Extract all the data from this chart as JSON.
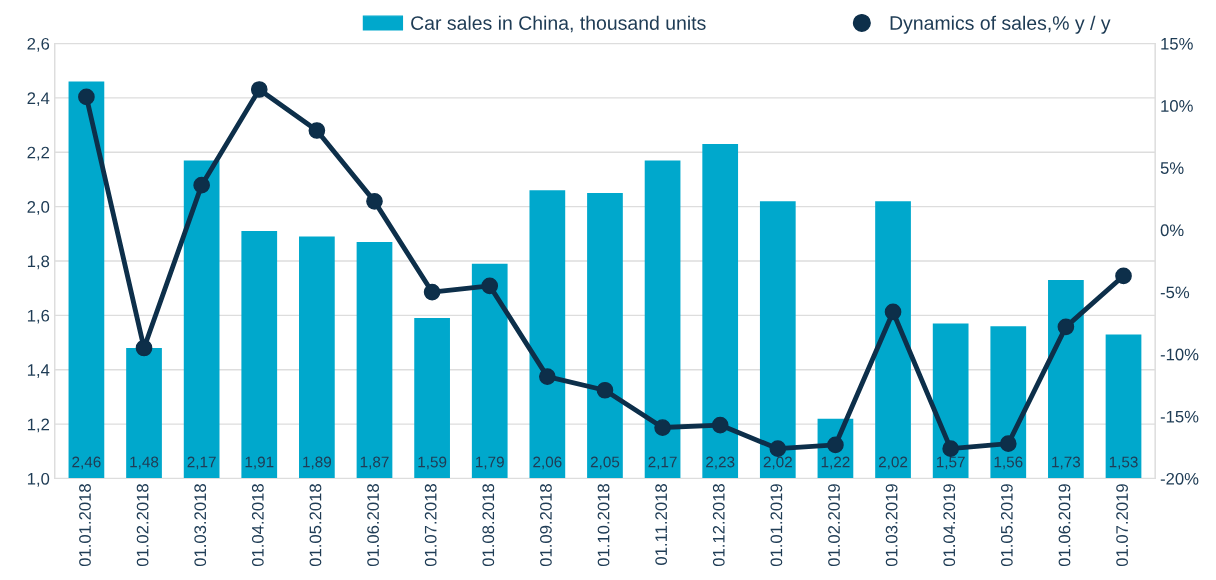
{
  "chart_data": {
    "type": "bar",
    "categories": [
      "01.01.2018",
      "01.02.2018",
      "01.03.2018",
      "01.04.2018",
      "01.05.2018",
      "01.06.2018",
      "01.07.2018",
      "01.08.2018",
      "01.09.2018",
      "01.10.2018",
      "01.11.2018",
      "01.12.2018",
      "01.01.2019",
      "01.02.2019",
      "01.03.2019",
      "01.04.2019",
      "01.05.2019",
      "01.06.2019",
      "01.07.2019"
    ],
    "series": [
      {
        "name": "Car sales in China, thousand units",
        "color": "#00a8cc",
        "values": [
          2.46,
          1.48,
          2.17,
          1.91,
          1.89,
          1.87,
          1.59,
          1.79,
          2.06,
          2.05,
          2.17,
          2.23,
          2.02,
          1.22,
          2.02,
          1.57,
          1.56,
          1.73,
          1.53
        ],
        "value_labels": [
          "2,46",
          "1,48",
          "2,17",
          "1,91",
          "1,89",
          "1,87",
          "1,59",
          "1,79",
          "2,06",
          "2,05",
          "2,17",
          "2,23",
          "2,02",
          "1,22",
          "2,02",
          "1,57",
          "1,56",
          "1,73",
          "1,53"
        ]
      },
      {
        "name": "Dynamics of sales,% y / y",
        "type": "line",
        "axis": "y2",
        "color": "#0d2f4a",
        "marker": "circle",
        "values": [
          10.7,
          -9.5,
          3.6,
          11.3,
          8.0,
          2.3,
          -5.0,
          -4.5,
          -11.8,
          -12.9,
          -15.9,
          -15.7,
          -17.6,
          -17.3,
          -6.6,
          -17.6,
          -17.2,
          -7.8,
          -3.7
        ]
      }
    ],
    "ylim": [
      1.0,
      2.6
    ],
    "yticks": [
      {
        "value": 1.0,
        "label": "1,0"
      },
      {
        "value": 1.2,
        "label": "1,2"
      },
      {
        "value": 1.4,
        "label": "1,4"
      },
      {
        "value": 1.6,
        "label": "1,6"
      },
      {
        "value": 1.8,
        "label": "1,8"
      },
      {
        "value": 2.0,
        "label": "2,0"
      },
      {
        "value": 2.2,
        "label": "2,2"
      },
      {
        "value": 2.4,
        "label": "2,4"
      },
      {
        "value": 2.6,
        "label": "2,6"
      }
    ],
    "y2lim": [
      -20,
      15
    ],
    "y2ticks": [
      {
        "value": -20,
        "label": "-20%"
      },
      {
        "value": -15,
        "label": "-15%"
      },
      {
        "value": -10,
        "label": "-10%"
      },
      {
        "value": -5,
        "label": "-5%"
      },
      {
        "value": 0,
        "label": "0%"
      },
      {
        "value": 5,
        "label": "5%"
      },
      {
        "value": 10,
        "label": "10%"
      },
      {
        "value": 15,
        "label": "15%"
      }
    ],
    "grid": "y",
    "legend": "top"
  }
}
